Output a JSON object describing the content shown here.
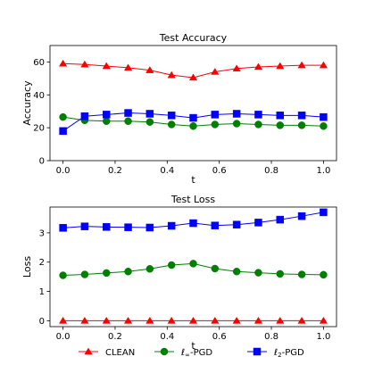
{
  "chart_data": [
    {
      "type": "line",
      "title": "Test Accuracy",
      "xlabel": "t",
      "ylabel": "Accuracy",
      "xlim": [
        -0.05,
        1.05
      ],
      "ylim": [
        0,
        70
      ],
      "xticks": [
        0.0,
        0.2,
        0.4,
        0.6,
        0.8,
        1.0
      ],
      "xtick_labels": [
        "0.0",
        "0.2",
        "0.4",
        "0.6",
        "0.8",
        "1.0"
      ],
      "yticks": [
        0,
        20,
        40,
        60
      ],
      "ytick_labels": [
        "0",
        "20",
        "40",
        "60"
      ],
      "x": [
        0.0,
        0.0833,
        0.1667,
        0.25,
        0.3333,
        0.4167,
        0.5,
        0.5833,
        0.6667,
        0.75,
        0.8333,
        0.9167,
        1.0
      ],
      "series": [
        {
          "name": "CLEAN",
          "color": "#ff0000",
          "marker": "triangle",
          "values": [
            59,
            58.5,
            57.5,
            56.5,
            55,
            52,
            50.5,
            54,
            56,
            57,
            57.5,
            58,
            58
          ]
        },
        {
          "name": "ℓ∞-PGD",
          "color": "#008000",
          "marker": "circle",
          "values": [
            26.5,
            24.5,
            24,
            24,
            23.5,
            22,
            21,
            22,
            22.5,
            22,
            21.5,
            21.5,
            21
          ]
        },
        {
          "name": "ℓ2-PGD",
          "color": "#0000ff",
          "marker": "square",
          "values": [
            18,
            27,
            28,
            29,
            28.5,
            27.5,
            26,
            28,
            28.5,
            28,
            27.5,
            27.5,
            26.5
          ]
        }
      ]
    },
    {
      "type": "line",
      "title": "Test Loss",
      "xlabel": "t",
      "ylabel": "Loss",
      "xlim": [
        -0.05,
        1.05
      ],
      "ylim": [
        -0.2,
        3.88
      ],
      "xticks": [
        0.0,
        0.2,
        0.4,
        0.6,
        0.8,
        1.0
      ],
      "xtick_labels": [
        "0.0",
        "0.2",
        "0.4",
        "0.6",
        "0.8",
        "1.0"
      ],
      "yticks": [
        0,
        1,
        2,
        3
      ],
      "ytick_labels": [
        "0",
        "1",
        "2",
        "3"
      ],
      "x": [
        0.0,
        0.0833,
        0.1667,
        0.25,
        0.3333,
        0.4167,
        0.5,
        0.5833,
        0.6667,
        0.75,
        0.8333,
        0.9167,
        1.0
      ],
      "series": [
        {
          "name": "CLEAN",
          "color": "#ff0000",
          "marker": "triangle",
          "values": [
            0,
            0,
            0,
            0,
            0,
            0,
            0,
            0,
            0,
            0,
            0,
            0,
            0
          ]
        },
        {
          "name": "ℓ∞-PGD",
          "color": "#008000",
          "marker": "circle",
          "values": [
            1.55,
            1.58,
            1.63,
            1.68,
            1.77,
            1.9,
            1.95,
            1.78,
            1.68,
            1.64,
            1.6,
            1.58,
            1.57
          ]
        },
        {
          "name": "ℓ2-PGD",
          "color": "#0000ff",
          "marker": "square",
          "values": [
            3.17,
            3.22,
            3.2,
            3.19,
            3.18,
            3.24,
            3.33,
            3.25,
            3.28,
            3.35,
            3.45,
            3.57,
            3.7
          ]
        }
      ]
    }
  ],
  "legend": {
    "placement": "bottom",
    "entries": [
      {
        "label": "CLEAN",
        "color": "#ff0000",
        "marker": "triangle"
      },
      {
        "label": "ℓ∞-PGD",
        "color": "#008000",
        "marker": "circle"
      },
      {
        "label": "ℓ2-PGD",
        "color": "#0000ff",
        "marker": "square"
      }
    ]
  }
}
